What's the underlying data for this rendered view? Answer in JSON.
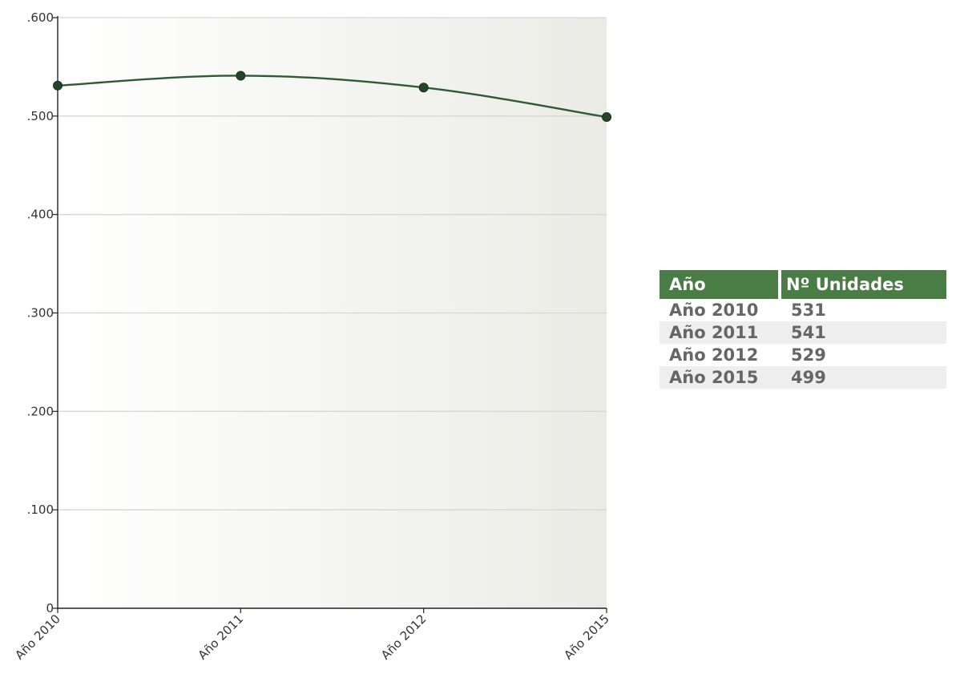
{
  "chart_data": {
    "type": "line",
    "categories": [
      "Año 2010",
      "Año 2011",
      "Año 2012",
      "Año 2015"
    ],
    "values": [
      531,
      541,
      529,
      499
    ],
    "ylim": [
      0,
      600
    ],
    "yticks": [
      {
        "value": 0,
        "label": "0"
      },
      {
        "value": 100,
        "label": ".100"
      },
      {
        "value": 200,
        "label": ".200"
      },
      {
        "value": 300,
        "label": ".300"
      },
      {
        "value": 400,
        "label": ".400"
      },
      {
        "value": 500,
        "label": ".500"
      },
      {
        "value": 600,
        "label": ".600"
      }
    ],
    "grid": true,
    "line_color": "#2f5a34",
    "marker_color": "#25452a"
  },
  "table": {
    "header_color": "#4a7c45",
    "headers": [
      "Año",
      "Nº Unidades"
    ],
    "rows": [
      [
        "Año 2010",
        "531"
      ],
      [
        "Año 2011",
        "541"
      ],
      [
        "Año 2012",
        "529"
      ],
      [
        "Año 2015",
        "499"
      ]
    ]
  }
}
